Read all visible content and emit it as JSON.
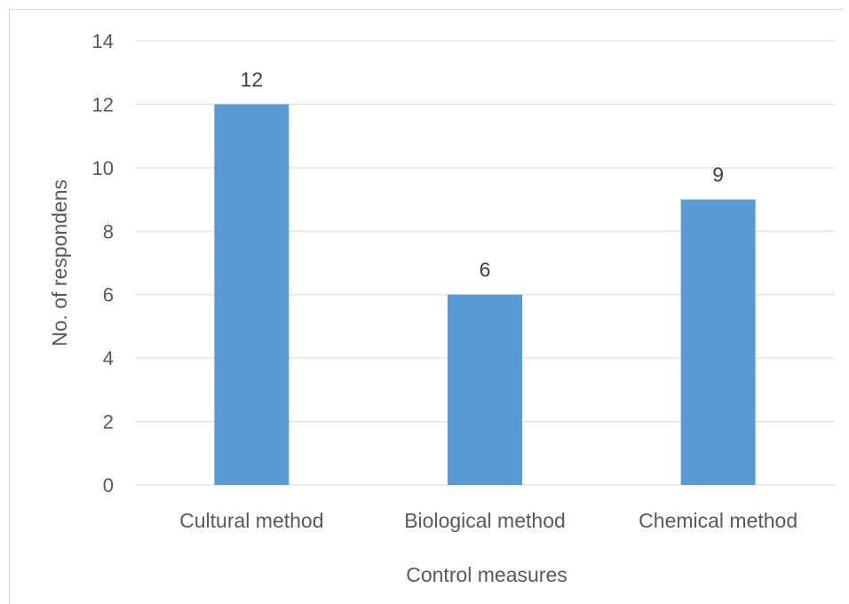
{
  "chart_data": {
    "type": "bar",
    "categories": [
      "Cultural method",
      "Biological method",
      "Chemical method"
    ],
    "values": [
      12,
      6,
      9
    ],
    "data_labels": [
      "12",
      "6",
      "9"
    ],
    "xlabel": "Control measures",
    "ylabel": "No. of respondens",
    "ylim": [
      0,
      14
    ],
    "yticks": [
      0,
      2,
      4,
      6,
      8,
      10,
      12,
      14
    ],
    "ytick_labels": [
      "0",
      "2",
      "4",
      "6",
      "8",
      "10",
      "12",
      "14"
    ],
    "grid": true,
    "legend": "none",
    "bar_color": "#5b9bd5"
  }
}
